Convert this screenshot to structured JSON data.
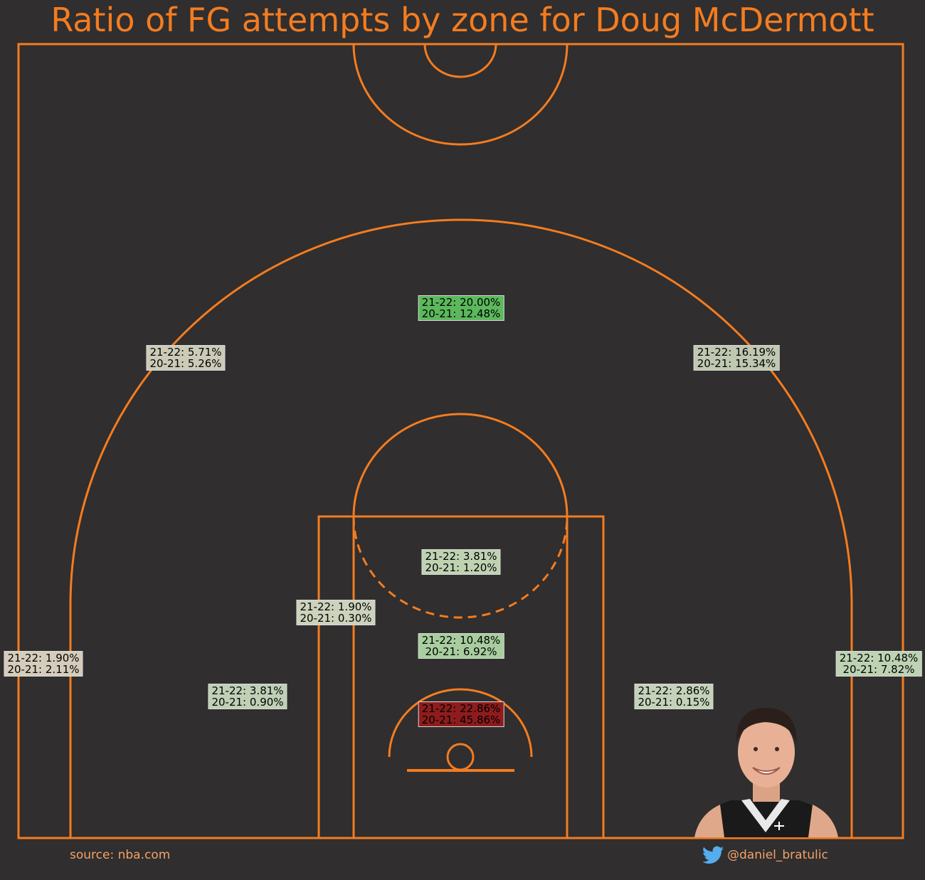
{
  "chart_data": {
    "type": "heatmap",
    "title": "Ratio of FG attempts by zone for Doug McDermott",
    "series_names": [
      "21-22",
      "20-21"
    ],
    "zones": [
      {
        "id": "above-break-center-3",
        "v2122": "20.00%",
        "v2021": "12.48%",
        "color": "#5cb85c"
      },
      {
        "id": "above-break-left-3",
        "v2122": "5.71%",
        "v2021": "5.26%",
        "color": "#cccbb8"
      },
      {
        "id": "above-break-right-3",
        "v2122": "16.19%",
        "v2021": "15.34%",
        "color": "#bfc8b0"
      },
      {
        "id": "paint-non-ra-top",
        "v2122": "3.81%",
        "v2021": "1.20%",
        "color": "#bfd3b3"
      },
      {
        "id": "mid-left-elbow",
        "v2122": "1.90%",
        "v2021": "0.30%",
        "color": "#cdd2bc"
      },
      {
        "id": "paint-non-ra-center",
        "v2122": "10.48%",
        "v2021": "6.92%",
        "color": "#a8ce9f"
      },
      {
        "id": "left-corner-3",
        "v2122": "1.90%",
        "v2021": "2.11%",
        "color": "#d6ccbb"
      },
      {
        "id": "right-corner-3",
        "v2122": "10.48%",
        "v2021": "7.82%",
        "color": "#bdd3b3"
      },
      {
        "id": "mid-left-baseline",
        "v2122": "3.81%",
        "v2021": "0.90%",
        "color": "#bfd0b6"
      },
      {
        "id": "mid-right-baseline",
        "v2122": "2.86%",
        "v2021": "0.15%",
        "color": "#c5d2ba"
      },
      {
        "id": "restricted-area",
        "v2122": "22.86%",
        "v2021": "45.86%",
        "color": "#8e1c1c"
      }
    ]
  },
  "footer": {
    "source": "source: nba.com",
    "handle": "@daniel_bratulic"
  },
  "colors": {
    "background": "#302e2e",
    "court_lines": "#f47c20",
    "title": "#f47c20",
    "footer_text": "#f2a26a",
    "twitter": "#55acee"
  },
  "icons": {
    "twitter": "twitter-icon",
    "player": "player-headshot"
  }
}
